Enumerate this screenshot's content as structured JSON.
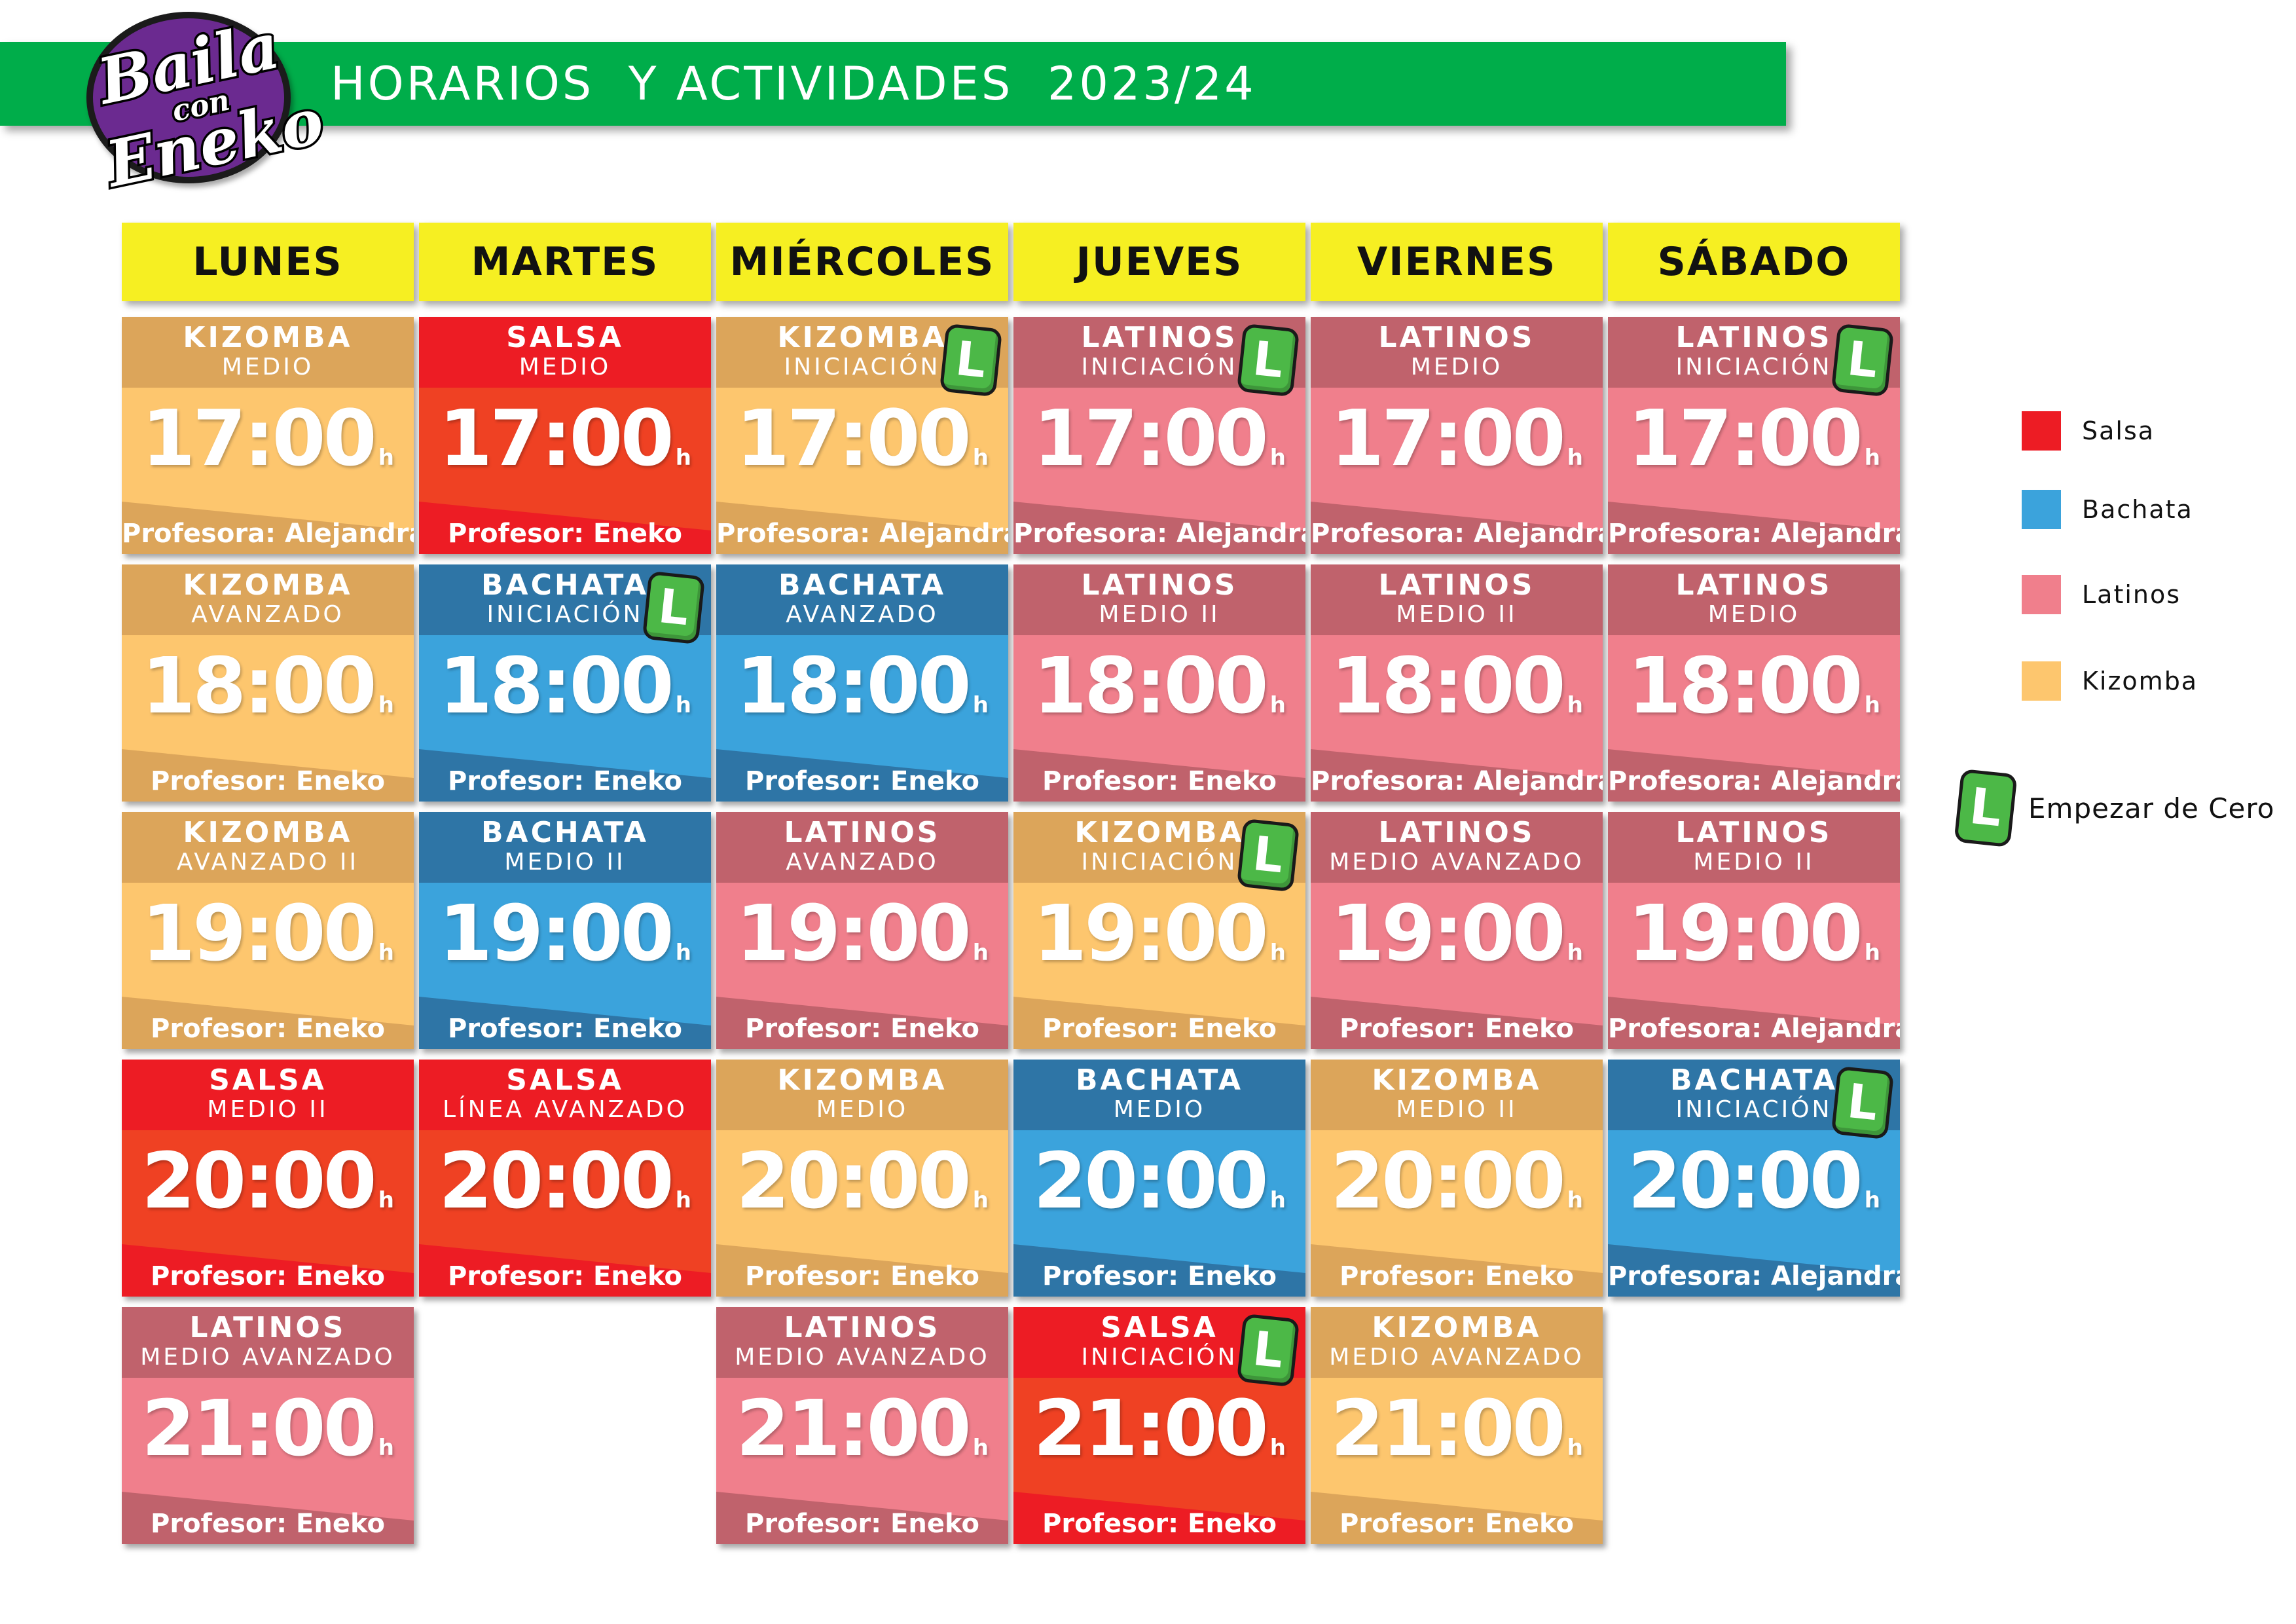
{
  "header": {
    "title": "HORARIOS  Y ACTIVIDADES  2023/24",
    "logo": {
      "line1": "Baila",
      "line2": "con",
      "line3": "Eneko"
    },
    "bar_color": "#00ad4a"
  },
  "days": [
    "LUNES",
    "MARTES",
    "MIÉRCOLES",
    "JUEVES",
    "VIERNES",
    "SÁBADO"
  ],
  "hour_suffix": "h",
  "beginner_badge": "L",
  "schedule": [
    {
      "day": 0,
      "row": 0,
      "style": "kizomba",
      "name": "KIZOMBA",
      "level": "MEDIO",
      "time": "17:00",
      "teacher": "Profesora: Alejandra",
      "beginner": false
    },
    {
      "day": 1,
      "row": 0,
      "style": "salsa",
      "name": "SALSA",
      "level": "MEDIO",
      "time": "17:00",
      "teacher": "Profesor: Eneko",
      "beginner": false
    },
    {
      "day": 2,
      "row": 0,
      "style": "kizomba",
      "name": "KIZOMBA",
      "level": "INICIACIÓN",
      "time": "17:00",
      "teacher": "Profesora: Alejandra",
      "beginner": true
    },
    {
      "day": 3,
      "row": 0,
      "style": "latinos",
      "name": "LATINOS",
      "level": "INICIACIÓN",
      "time": "17:00",
      "teacher": "Profesora: Alejandra",
      "beginner": true
    },
    {
      "day": 4,
      "row": 0,
      "style": "latinos",
      "name": "LATINOS",
      "level": "MEDIO",
      "time": "17:00",
      "teacher": "Profesora: Alejandra",
      "beginner": false
    },
    {
      "day": 5,
      "row": 0,
      "style": "latinos",
      "name": "LATINOS",
      "level": "INICIACIÓN",
      "time": "17:00",
      "teacher": "Profesora: Alejandra",
      "beginner": true
    },
    {
      "day": 0,
      "row": 1,
      "style": "kizomba",
      "name": "KIZOMBA",
      "level": "AVANZADO",
      "time": "18:00",
      "teacher": "Profesor: Eneko",
      "beginner": false
    },
    {
      "day": 1,
      "row": 1,
      "style": "bachata",
      "name": "BACHATA",
      "level": "INICIACIÓN",
      "time": "18:00",
      "teacher": "Profesor: Eneko",
      "beginner": true
    },
    {
      "day": 2,
      "row": 1,
      "style": "bachata",
      "name": "BACHATA",
      "level": "AVANZADO",
      "time": "18:00",
      "teacher": "Profesor: Eneko",
      "beginner": false
    },
    {
      "day": 3,
      "row": 1,
      "style": "latinos",
      "name": "LATINOS",
      "level": "MEDIO II",
      "time": "18:00",
      "teacher": "Profesor: Eneko",
      "beginner": false
    },
    {
      "day": 4,
      "row": 1,
      "style": "latinos",
      "name": "LATINOS",
      "level": "MEDIO II",
      "time": "18:00",
      "teacher": "Profesora: Alejandra",
      "beginner": false
    },
    {
      "day": 5,
      "row": 1,
      "style": "latinos",
      "name": "LATINOS",
      "level": "MEDIO",
      "time": "18:00",
      "teacher": "Profesora: Alejandra",
      "beginner": false
    },
    {
      "day": 0,
      "row": 2,
      "style": "kizomba",
      "name": "KIZOMBA",
      "level": "AVANZADO II",
      "time": "19:00",
      "teacher": "Profesor: Eneko",
      "beginner": false
    },
    {
      "day": 1,
      "row": 2,
      "style": "bachata",
      "name": "BACHATA",
      "level": "MEDIO II",
      "time": "19:00",
      "teacher": "Profesor: Eneko",
      "beginner": false
    },
    {
      "day": 2,
      "row": 2,
      "style": "latinos",
      "name": "LATINOS",
      "level": "AVANZADO",
      "time": "19:00",
      "teacher": "Profesor: Eneko",
      "beginner": false
    },
    {
      "day": 3,
      "row": 2,
      "style": "kizomba",
      "name": "KIZOMBA",
      "level": "INICIACIÓN",
      "time": "19:00",
      "teacher": "Profesor: Eneko",
      "beginner": true
    },
    {
      "day": 4,
      "row": 2,
      "style": "latinos",
      "name": "LATINOS",
      "level": "MEDIO AVANZADO",
      "time": "19:00",
      "teacher": "Profesor: Eneko",
      "beginner": false
    },
    {
      "day": 5,
      "row": 2,
      "style": "latinos",
      "name": "LATINOS",
      "level": "MEDIO II",
      "time": "19:00",
      "teacher": "Profesora: Alejandra",
      "beginner": false
    },
    {
      "day": 0,
      "row": 3,
      "style": "salsa",
      "name": "SALSA",
      "level": "MEDIO II",
      "time": "20:00",
      "teacher": "Profesor: Eneko",
      "beginner": false
    },
    {
      "day": 1,
      "row": 3,
      "style": "salsa",
      "name": "SALSA",
      "level": "LÍNEA AVANZADO",
      "time": "20:00",
      "teacher": "Profesor: Eneko",
      "beginner": false
    },
    {
      "day": 2,
      "row": 3,
      "style": "kizomba",
      "name": "KIZOMBA",
      "level": "MEDIO",
      "time": "20:00",
      "teacher": "Profesor: Eneko",
      "beginner": false
    },
    {
      "day": 3,
      "row": 3,
      "style": "bachata",
      "name": "BACHATA",
      "level": "MEDIO",
      "time": "20:00",
      "teacher": "Profesor: Eneko",
      "beginner": false
    },
    {
      "day": 4,
      "row": 3,
      "style": "kizomba",
      "name": "KIZOMBA",
      "level": "MEDIO II",
      "time": "20:00",
      "teacher": "Profesor: Eneko",
      "beginner": false
    },
    {
      "day": 5,
      "row": 3,
      "style": "bachata",
      "name": "BACHATA",
      "level": "INICIACIÓN",
      "time": "20:00",
      "teacher": "Profesora: Alejandra",
      "beginner": true
    },
    {
      "day": 0,
      "row": 4,
      "style": "latinos",
      "name": "LATINOS",
      "level": "MEDIO AVANZADO",
      "time": "21:00",
      "teacher": "Profesor: Eneko",
      "beginner": false
    },
    {
      "day": 2,
      "row": 4,
      "style": "latinos",
      "name": "LATINOS",
      "level": "MEDIO AVANZADO",
      "time": "21:00",
      "teacher": "Profesor: Eneko",
      "beginner": false
    },
    {
      "day": 3,
      "row": 4,
      "style": "salsa",
      "name": "SALSA",
      "level": "INICIACIÓN",
      "time": "21:00",
      "teacher": "Profesor: Eneko",
      "beginner": true
    },
    {
      "day": 4,
      "row": 4,
      "style": "kizomba",
      "name": "KIZOMBA",
      "level": "MEDIO AVANZADO",
      "time": "21:00",
      "teacher": "Profesor: Eneko",
      "beginner": false
    }
  ],
  "legend": {
    "items": [
      {
        "label": "Salsa",
        "color": "#ed1c24"
      },
      {
        "label": "Bachata",
        "color": "#3ba3dc"
      },
      {
        "label": "Latinos",
        "color": "#f07f8c"
      },
      {
        "label": "Kizomba",
        "color": "#fdc66e"
      }
    ],
    "beginner_label": "Empezar de Cero"
  }
}
